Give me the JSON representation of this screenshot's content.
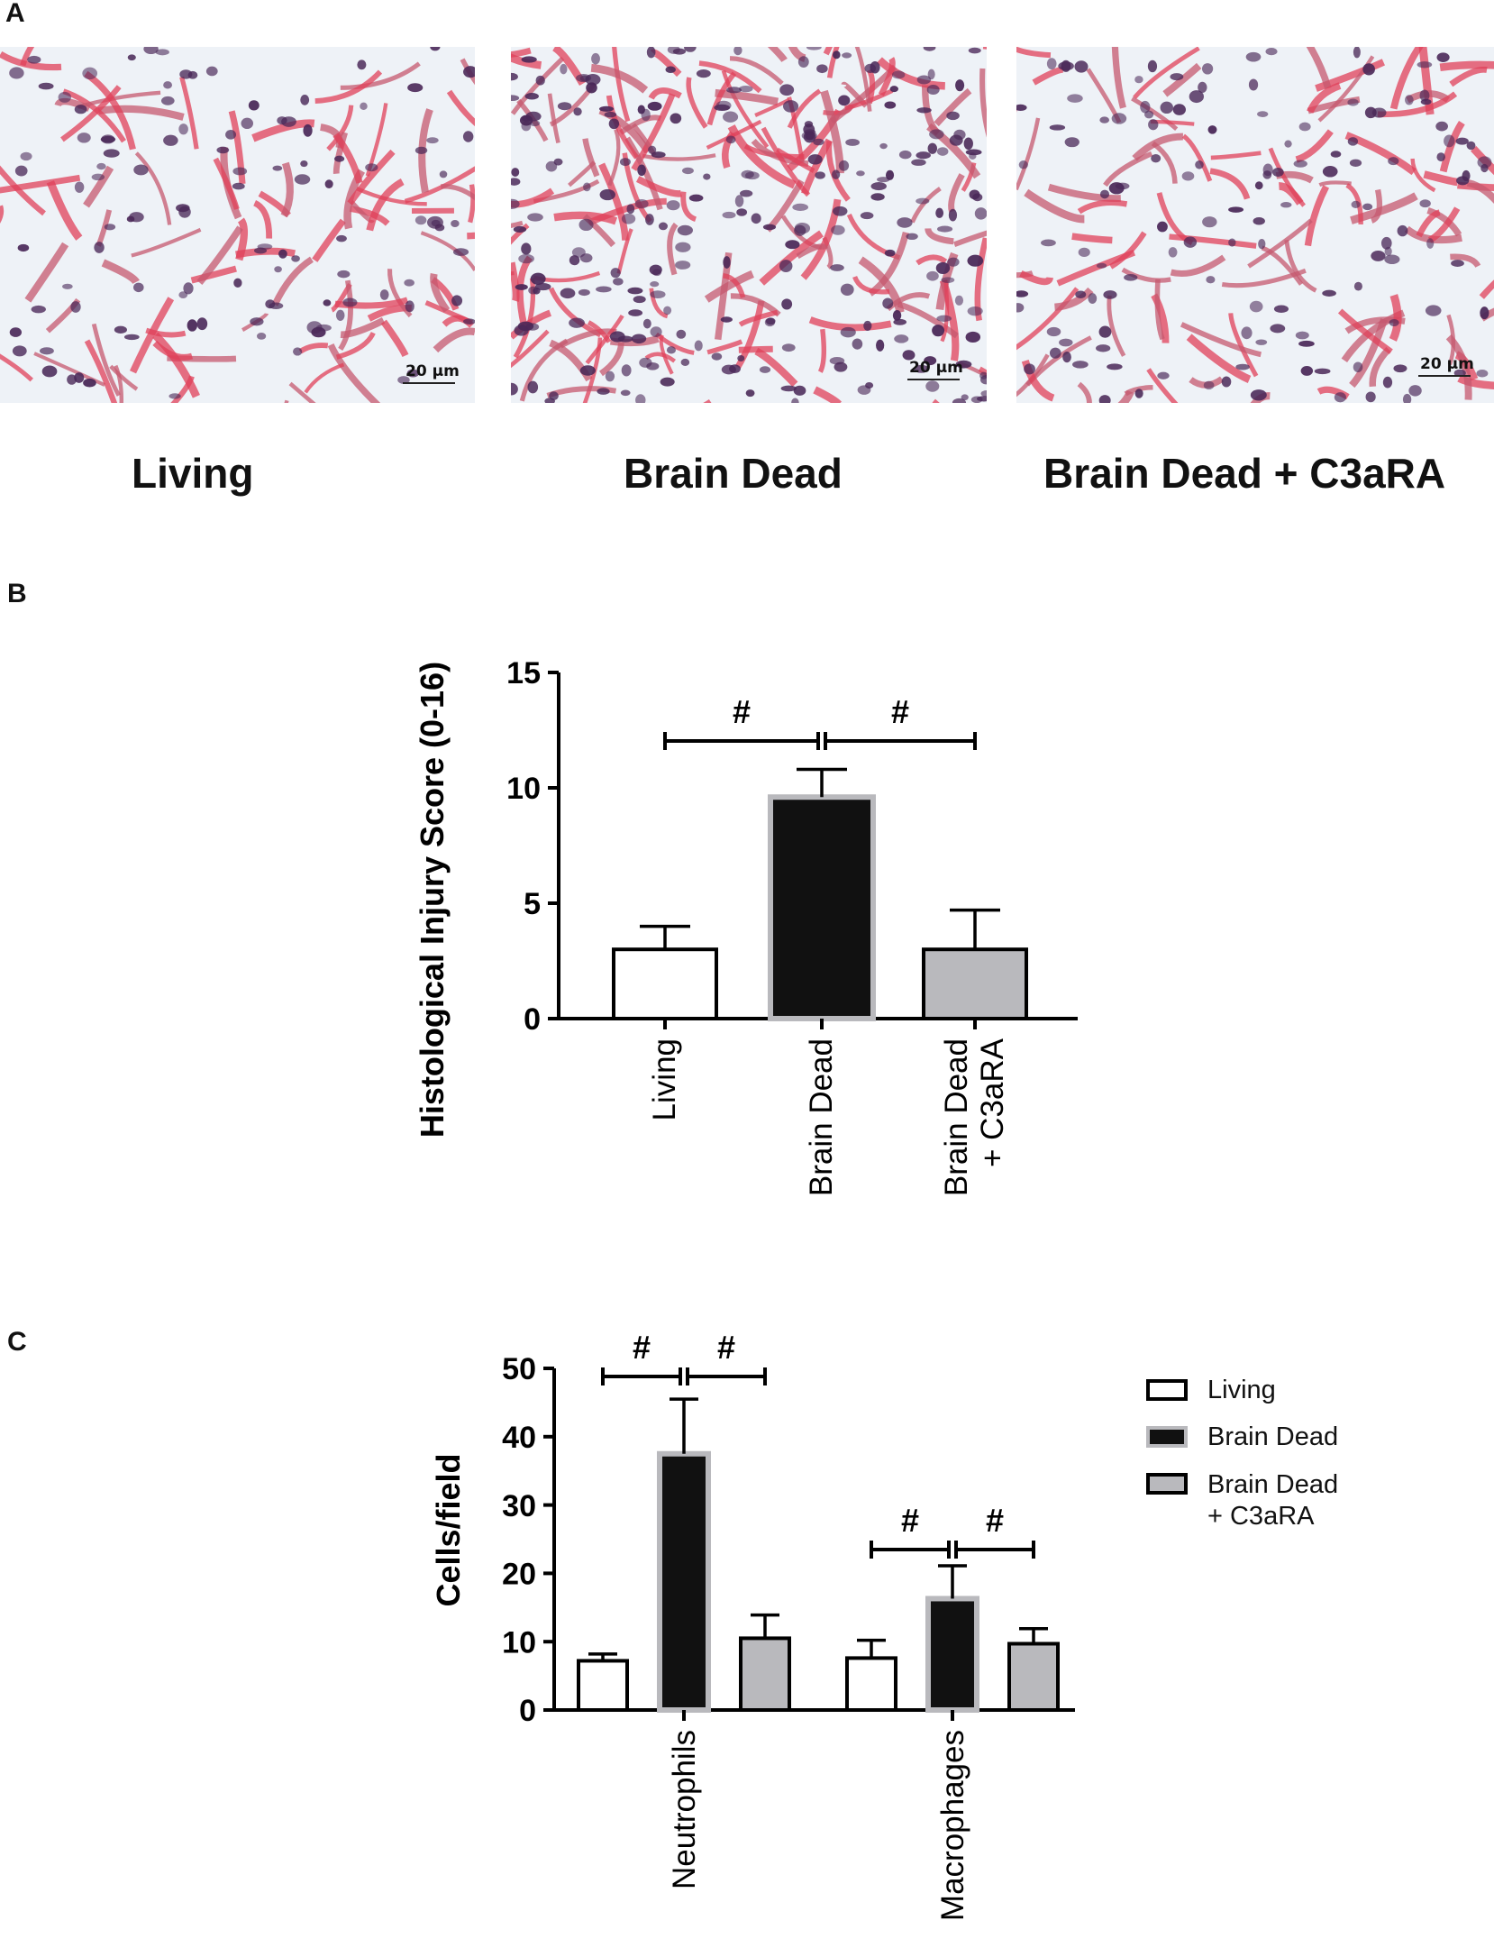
{
  "panels": {
    "a": {
      "letter": "A",
      "images": [
        {
          "label": "Living",
          "scale_bar": "20 μm"
        },
        {
          "label": "Brain Dead",
          "scale_bar": "20 μm"
        },
        {
          "label": "Brain Dead + C3aRA",
          "scale_bar": "20 μm"
        }
      ]
    },
    "b": {
      "letter": "B"
    },
    "c": {
      "letter": "C"
    }
  },
  "colors": {
    "living": "#ffffff",
    "brain_dead": "#111111",
    "brain_dead_c3ara": "#b9b9bd",
    "bar_edge": "#000000",
    "tissue_pink": "#e0405a",
    "nuclei_purple": "#4a2858"
  },
  "chart_data": [
    {
      "type": "bar",
      "title": "",
      "xlabel": "",
      "ylabel": "Histological Injury Score (0-16)",
      "ylim": [
        0,
        15
      ],
      "yticks": [
        0,
        5,
        10,
        15
      ],
      "categories": [
        "Living",
        "Brain Dead",
        "Brain Dead\n+ C3aRA"
      ],
      "category_lines": [
        [
          "Living"
        ],
        [
          "Brain Dead"
        ],
        [
          "Brain Dead",
          "+ C3aRA"
        ]
      ],
      "values": [
        3.0,
        9.6,
        3.0
      ],
      "errors": [
        1.0,
        1.2,
        1.7
      ],
      "significance": [
        {
          "from": 0,
          "to": 1,
          "label": "#"
        },
        {
          "from": 1,
          "to": 2,
          "label": "#"
        }
      ]
    },
    {
      "type": "bar",
      "title": "",
      "xlabel": "",
      "ylabel": "Cells/field",
      "ylim": [
        0,
        50
      ],
      "yticks": [
        0,
        10,
        20,
        30,
        40,
        50
      ],
      "categories": [
        "Neutrophils",
        "Macrophages"
      ],
      "series": [
        {
          "name": "Living",
          "values": [
            7.2,
            7.6
          ],
          "errors": [
            1.0,
            2.6
          ]
        },
        {
          "name": "Brain Dead",
          "values": [
            37.5,
            16.3
          ],
          "errors": [
            8.0,
            4.8
          ]
        },
        {
          "name": "Brain Dead\n+ C3aRA",
          "values": [
            10.5,
            9.7
          ],
          "errors": [
            3.4,
            2.2
          ]
        }
      ],
      "legend_lines": [
        [
          "Living"
        ],
        [
          "Brain Dead"
        ],
        [
          "Brain Dead",
          "+ C3aRA"
        ]
      ],
      "legend_position": "right",
      "significance": [
        {
          "group": 0,
          "from": 0,
          "to": 1,
          "label": "#"
        },
        {
          "group": 0,
          "from": 1,
          "to": 2,
          "label": "#"
        },
        {
          "group": 1,
          "from": 0,
          "to": 1,
          "label": "#"
        },
        {
          "group": 1,
          "from": 1,
          "to": 2,
          "label": "#"
        }
      ]
    }
  ]
}
